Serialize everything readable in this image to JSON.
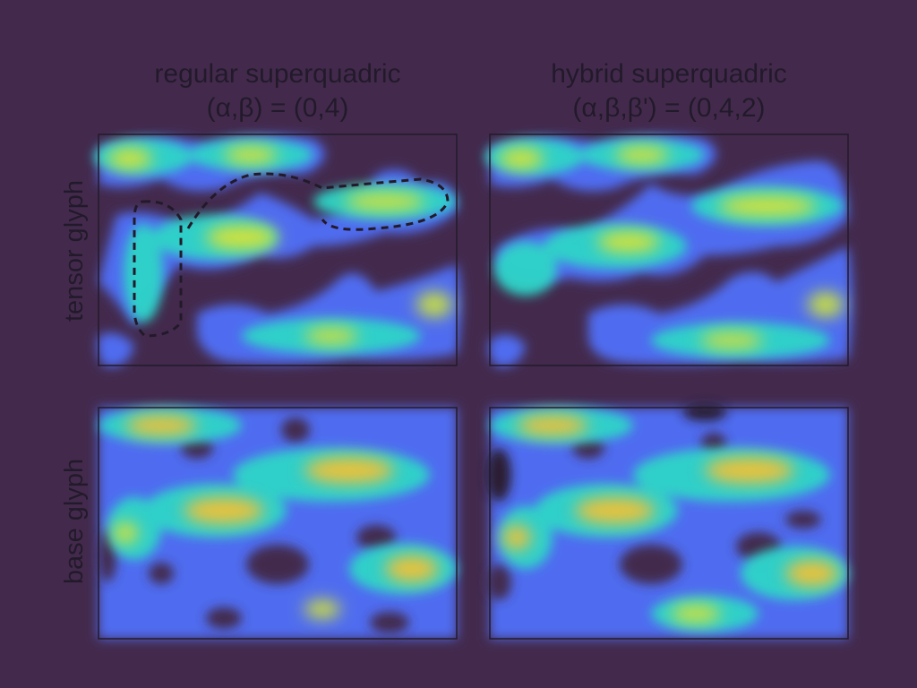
{
  "columns": [
    {
      "title_line1": "regular superquadric",
      "title_line2": "(α,β) = (0,4)"
    },
    {
      "title_line1": "hybrid superquadric",
      "title_line2": "(α,β,β') = (0,4,2)"
    }
  ],
  "rows": [
    {
      "label": "tensor glyph"
    },
    {
      "label": "base glyph"
    }
  ],
  "colors": {
    "background": "#432a4d",
    "frame": "#221a2a",
    "heat_low": "#4f6cf0",
    "heat_mid": "#2fd5c8",
    "heat_high": "#d2e23a"
  }
}
